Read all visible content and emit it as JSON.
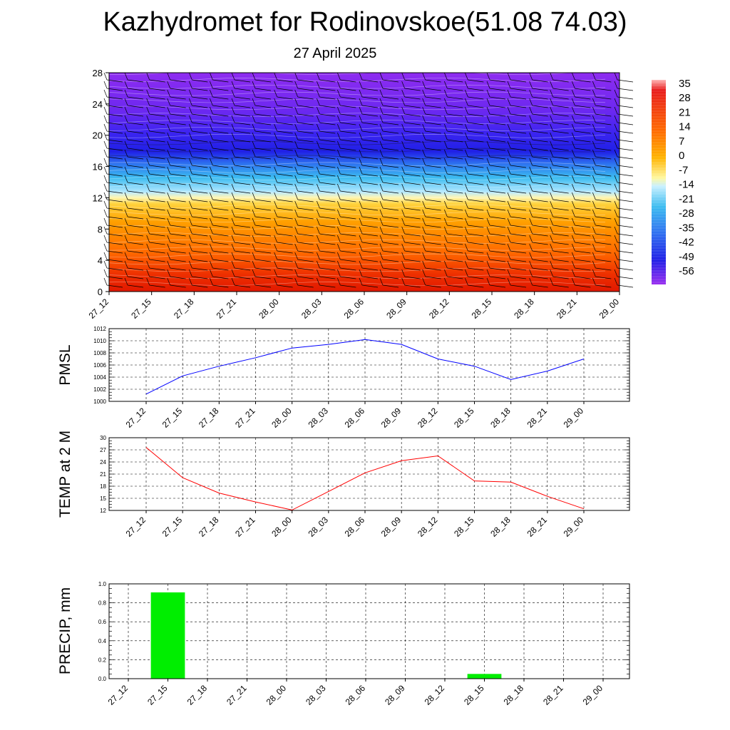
{
  "title": "Kazhydromet for Rodinovskoe(51.08 74.03)",
  "subtitle": "27 April 2025",
  "chart_data": [
    {
      "type": "heatmap",
      "name": "vertical-section",
      "x_ticks": [
        "27_12",
        "27_15",
        "27_18",
        "27_21",
        "28_00",
        "28_03",
        "28_06",
        "28_09",
        "28_12",
        "28_15",
        "28_18",
        "28_21",
        "29_00"
      ],
      "y_ticks": [
        0,
        4,
        8,
        12,
        16,
        20,
        24,
        28
      ],
      "ylim": [
        0,
        28
      ],
      "colorbar_labels": [
        "35",
        "28",
        "21",
        "14",
        "7",
        "0",
        "-7",
        "-14",
        "-21",
        "-28",
        "-35",
        "-42",
        "-49",
        "-56"
      ],
      "colors": {
        "warm": "#e61e00",
        "orange": "#ff8c00",
        "yellow": "#ffe866",
        "cyan": "#2cb4f0",
        "blue": "#2828f0",
        "violet": "#8c28f0"
      }
    },
    {
      "type": "line",
      "name": "pmsl",
      "ylabel": "PMSL",
      "x": [
        "27_12",
        "27_15",
        "27_18",
        "27_21",
        "28_00",
        "28_03",
        "28_06",
        "28_09",
        "28_12",
        "28_15",
        "28_18",
        "28_21",
        "29_00"
      ],
      "values": [
        1001.2,
        1004.2,
        1005.8,
        1007.2,
        1008.8,
        1009.4,
        1010.2,
        1009.4,
        1007.0,
        1005.8,
        1003.6,
        1005.0,
        1007.0
      ],
      "ylim": [
        1000,
        1012
      ],
      "y_ticks": [
        "1000",
        "1002",
        "1004",
        "1006",
        "1008",
        "1010",
        "1012"
      ],
      "color": "#0000ff"
    },
    {
      "type": "line",
      "name": "temp",
      "ylabel": "TEMP at 2 M",
      "x": [
        "27_12",
        "27_15",
        "27_18",
        "27_21",
        "28_00",
        "28_03",
        "28_06",
        "28_09",
        "28_12",
        "28_15",
        "28_18",
        "28_21",
        "29_00"
      ],
      "values": [
        27.6,
        20.1,
        16.3,
        14.1,
        12.1,
        16.7,
        21.3,
        24.3,
        25.5,
        19.3,
        19.0,
        15.5,
        12.4
      ],
      "ylim": [
        12,
        30
      ],
      "y_ticks": [
        "12",
        "15",
        "18",
        "21",
        "24",
        "27",
        "30"
      ],
      "color": "#ff0000"
    },
    {
      "type": "bar",
      "name": "precip",
      "ylabel": "PRECIP, mm",
      "categories": [
        "27_12",
        "27_15",
        "27_18",
        "27_21",
        "28_00",
        "28_03",
        "28_06",
        "28_09",
        "28_12",
        "28_15",
        "28_18",
        "28_21",
        "29_00"
      ],
      "values": [
        0,
        0.91,
        0,
        0,
        0,
        0,
        0,
        0,
        0,
        0.05,
        0,
        0,
        0
      ],
      "ylim": [
        0,
        1.0
      ],
      "y_ticks": [
        "0.0",
        "0.2",
        "0.4",
        "0.6",
        "0.8",
        "1.0"
      ],
      "color": "#00ee00"
    }
  ]
}
